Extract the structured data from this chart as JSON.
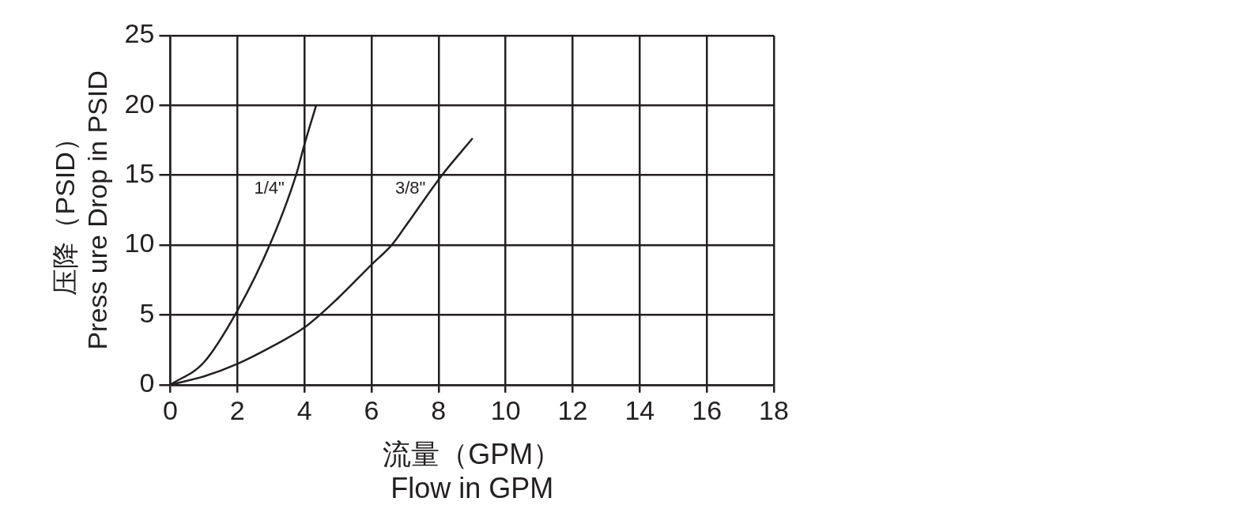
{
  "chart_data": {
    "type": "line",
    "xlabel": "流量（GPM）\nFlow in GPM",
    "ylabel": "压降（PSID）\nPress ure Drop in PSID",
    "xlim": [
      0,
      18
    ],
    "xticks": [
      0,
      2,
      4,
      6,
      8,
      10,
      12,
      14,
      16,
      18
    ],
    "ylim": [
      0,
      25
    ],
    "yticks": [
      0,
      5,
      10,
      15,
      20,
      25
    ],
    "grid": true,
    "legend": false,
    "marker": "none",
    "line_style": "solid",
    "series": [
      {
        "name": "1/4\"",
        "color": "#231f20",
        "x": [
          0,
          1,
          2,
          3,
          3.75,
          4,
          4.35
        ],
        "values": [
          0,
          1.6,
          5.3,
          10.2,
          15,
          17.2,
          20
        ]
      },
      {
        "name": "3/8\"",
        "color": "#231f20",
        "x": [
          0,
          1,
          2,
          3,
          4,
          5,
          6,
          6.6,
          7,
          8.1,
          9
        ],
        "values": [
          0,
          0.6,
          1.5,
          2.7,
          4.1,
          6.2,
          8.6,
          10,
          11.3,
          15,
          17.6
        ]
      }
    ]
  }
}
